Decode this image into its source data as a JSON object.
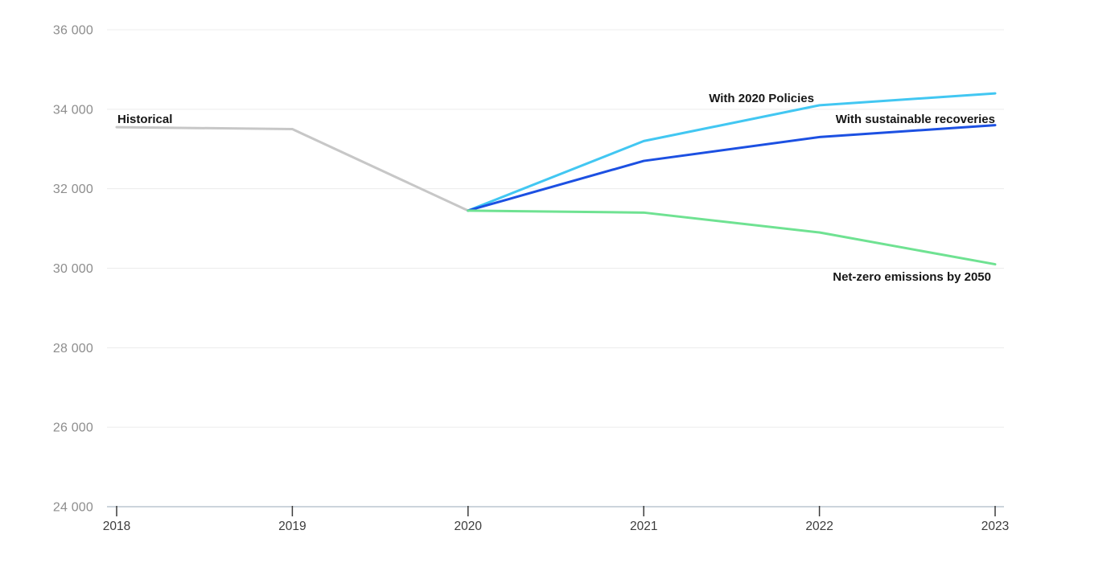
{
  "chart_data": {
    "type": "line",
    "title": "",
    "xlabel": "",
    "ylabel": "",
    "xlim": [
      2018,
      2023
    ],
    "ylim": [
      24000,
      36000
    ],
    "grid": true,
    "legend_position": "inline-labels",
    "x_ticks": [
      {
        "value": 2018,
        "label": "2018"
      },
      {
        "value": 2019,
        "label": "2019"
      },
      {
        "value": 2020,
        "label": "2020"
      },
      {
        "value": 2021,
        "label": "2021"
      },
      {
        "value": 2022,
        "label": "2022"
      },
      {
        "value": 2023,
        "label": "2023"
      }
    ],
    "y_ticks": [
      {
        "value": 36000,
        "label": "36 000"
      },
      {
        "value": 34000,
        "label": "34 000"
      },
      {
        "value": 32000,
        "label": "32 000"
      },
      {
        "value": 30000,
        "label": "30 000"
      },
      {
        "value": 28000,
        "label": "28 000"
      },
      {
        "value": 26000,
        "label": "26 000"
      },
      {
        "value": 24000,
        "label": "24 000"
      }
    ],
    "series": [
      {
        "id": "historical",
        "label": "Historical",
        "color": "#c7c7c7",
        "x": [
          2018,
          2019,
          2020
        ],
        "values": [
          33550,
          33500,
          31450
        ]
      },
      {
        "id": "with-2020-policies",
        "label": "With 2020 Policies",
        "color": "#42c7f2",
        "x": [
          2020,
          2021,
          2022,
          2023
        ],
        "values": [
          31450,
          33200,
          34100,
          34400
        ]
      },
      {
        "id": "with-sustainable-recoveries",
        "label": "With sustainable recoveries",
        "color": "#1c50e2",
        "x": [
          2020,
          2021,
          2022,
          2023
        ],
        "values": [
          31450,
          32700,
          33300,
          33600
        ]
      },
      {
        "id": "net-zero-2050",
        "label": "Net-zero emissions by 2050",
        "color": "#6fe292",
        "x": [
          2020,
          2021,
          2022,
          2023
        ],
        "values": [
          31450,
          31400,
          30900,
          30100
        ]
      }
    ],
    "axis_style": {
      "grid_color": "#ececec",
      "axis_line_color": "#ccd4dc",
      "tick_color": "#3b3b3b",
      "x_label_color": "#3c3c3c",
      "y_label_color": "#8d8d8d"
    }
  }
}
